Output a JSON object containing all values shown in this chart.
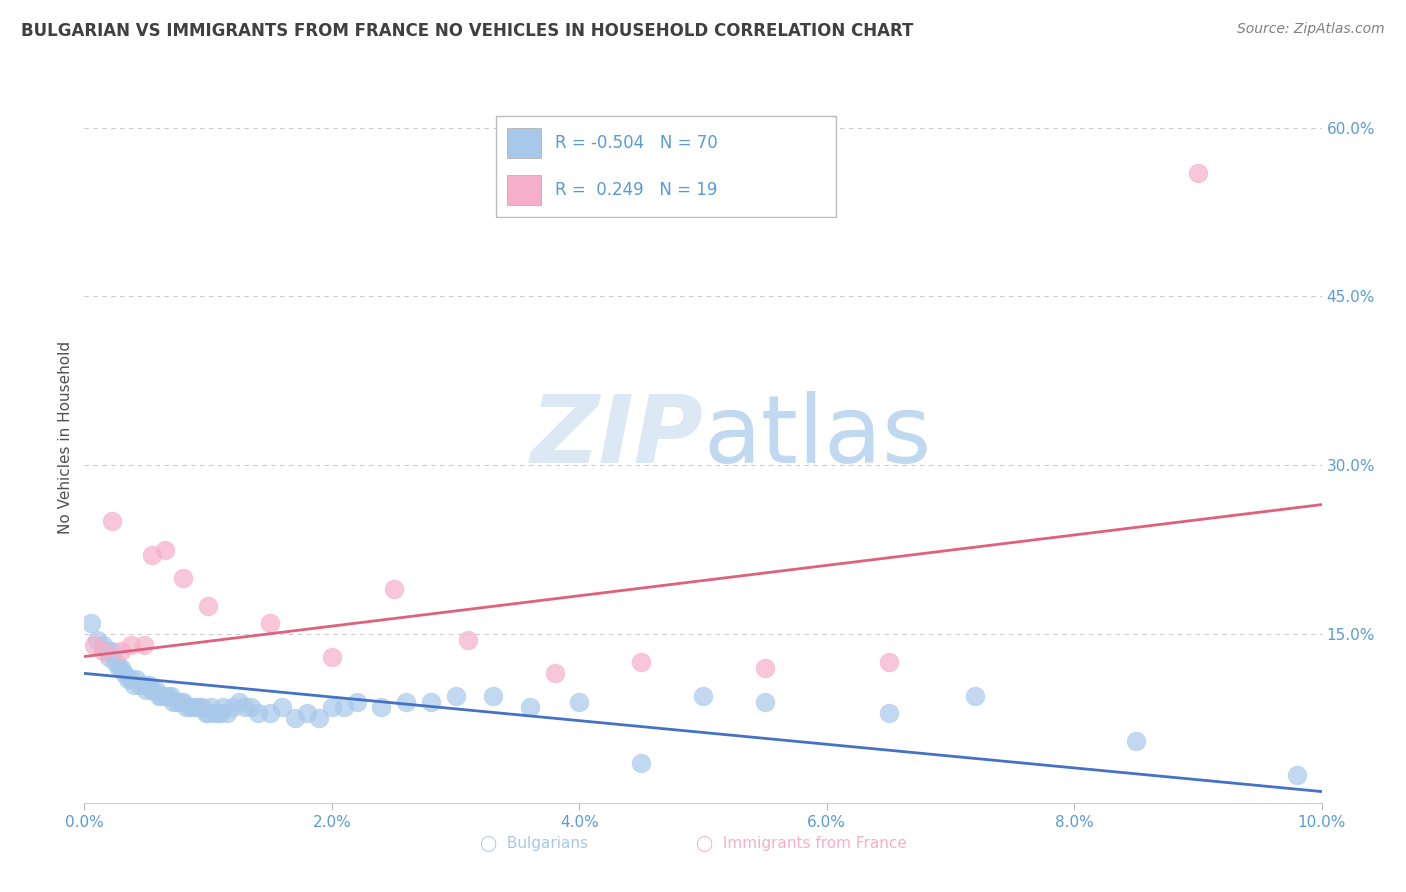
{
  "title": "BULGARIAN VS IMMIGRANTS FROM FRANCE NO VEHICLES IN HOUSEHOLD CORRELATION CHART",
  "source": "Source: ZipAtlas.com",
  "ylabel": "No Vehicles in Household",
  "xlim": [
    0.0,
    10.0
  ],
  "ylim": [
    0.0,
    65.0
  ],
  "x_ticks": [
    0.0,
    2.0,
    4.0,
    6.0,
    8.0,
    10.0
  ],
  "y_ticks_right": [
    15.0,
    30.0,
    45.0,
    60.0
  ],
  "blue_color": "#a8c8ea",
  "pink_color": "#f5afc8",
  "blue_line_color": "#4472c4",
  "pink_line_color": "#e06080",
  "title_color": "#404040",
  "source_color": "#808080",
  "axis_label_color": "#505050",
  "tick_label_color": "#5b9bd5",
  "watermark_color_zip": "#dde8f5",
  "watermark_color_atlas": "#c0d8f0",
  "grid_color": "#cccccc",
  "blue_scatter_x": [
    0.05,
    0.1,
    0.15,
    0.18,
    0.2,
    0.22,
    0.25,
    0.28,
    0.3,
    0.32,
    0.35,
    0.38,
    0.4,
    0.42,
    0.45,
    0.48,
    0.5,
    0.52,
    0.55,
    0.58,
    0.6,
    0.62,
    0.65,
    0.68,
    0.7,
    0.72,
    0.75,
    0.78,
    0.8,
    0.82,
    0.85,
    0.88,
    0.9,
    0.92,
    0.95,
    0.98,
    1.0,
    1.02,
    1.05,
    1.08,
    1.1,
    1.12,
    1.15,
    1.2,
    1.25,
    1.3,
    1.35,
    1.4,
    1.5,
    1.6,
    1.7,
    1.8,
    1.9,
    2.0,
    2.1,
    2.2,
    2.4,
    2.6,
    2.8,
    3.0,
    3.3,
    3.6,
    4.0,
    4.5,
    5.0,
    5.5,
    6.5,
    7.2,
    8.5,
    9.8
  ],
  "blue_scatter_y": [
    16.0,
    14.5,
    14.0,
    13.5,
    13.0,
    13.5,
    12.5,
    12.0,
    12.0,
    11.5,
    11.0,
    11.0,
    10.5,
    11.0,
    10.5,
    10.5,
    10.0,
    10.5,
    10.0,
    10.0,
    9.5,
    9.5,
    9.5,
    9.5,
    9.5,
    9.0,
    9.0,
    9.0,
    9.0,
    8.5,
    8.5,
    8.5,
    8.5,
    8.5,
    8.5,
    8.0,
    8.0,
    8.5,
    8.0,
    8.0,
    8.0,
    8.5,
    8.0,
    8.5,
    9.0,
    8.5,
    8.5,
    8.0,
    8.0,
    8.5,
    7.5,
    8.0,
    7.5,
    8.5,
    8.5,
    9.0,
    8.5,
    9.0,
    9.0,
    9.5,
    9.5,
    8.5,
    9.0,
    3.5,
    9.5,
    9.0,
    8.0,
    9.5,
    5.5,
    2.5
  ],
  "pink_scatter_x": [
    0.08,
    0.15,
    0.22,
    0.3,
    0.38,
    0.48,
    0.55,
    0.65,
    0.8,
    1.0,
    1.5,
    2.0,
    2.5,
    3.1,
    3.8,
    4.5,
    5.5,
    6.5,
    9.0
  ],
  "pink_scatter_y": [
    14.0,
    13.5,
    25.0,
    13.5,
    14.0,
    14.0,
    22.0,
    22.5,
    20.0,
    17.5,
    16.0,
    13.0,
    19.0,
    14.5,
    11.5,
    12.5,
    12.0,
    12.5,
    56.0
  ],
  "blue_trend_x": [
    0.0,
    10.0
  ],
  "blue_trend_y": [
    11.5,
    1.0
  ],
  "pink_trend_x": [
    0.0,
    10.0
  ],
  "pink_trend_y": [
    13.0,
    26.5
  ]
}
